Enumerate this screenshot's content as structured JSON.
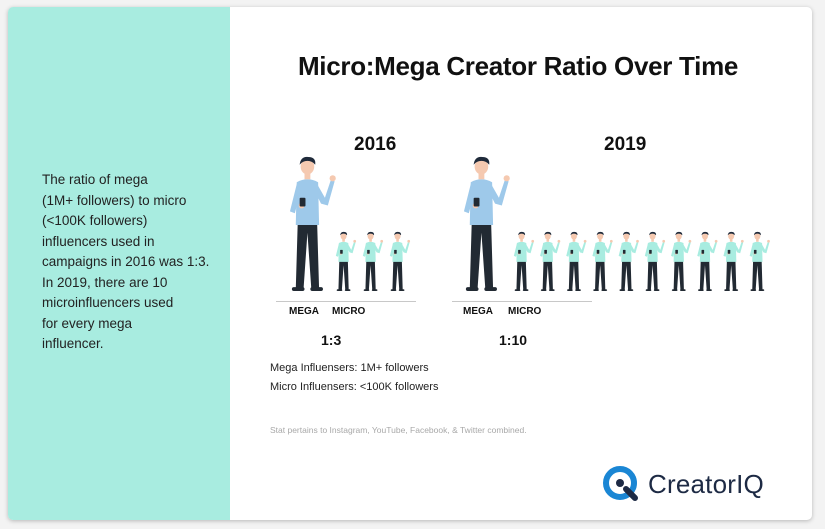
{
  "sidebar": {
    "text": "The ratio of mega\n(1M+ followers) to micro\n(<100K followers)\ninfluencers used in\ncampaigns in 2016 was 1:3.\nIn 2019, there are 10\nmicroinfluencers used\nfor every mega\ninfluencer."
  },
  "chart_data": {
    "type": "pictograph",
    "title": "Micro:Mega Creator Ratio Over Time",
    "categories": [
      "MEGA",
      "MICRO"
    ],
    "panels": [
      {
        "year": "2016",
        "ratio_label": "1:3",
        "mega_count": 1,
        "micro_count": 3
      },
      {
        "year": "2019",
        "ratio_label": "1:10",
        "mega_count": 1,
        "micro_count": 10
      }
    ],
    "colors": {
      "mega_shirt": "#9ec9ea",
      "micro_shirt": "#a8ece0",
      "pants": "#222a33",
      "skin": "#f5c9b0",
      "hair": "#1f2a3a"
    }
  },
  "notes": {
    "mega": "Mega Influensers: 1M+ followers",
    "micro": "Micro Influensers: <100K followers"
  },
  "footnote": "Stat pertains to Instagram, YouTube, Facebook, & Twitter combined.",
  "logo": {
    "text": "CreatorIQ",
    "icon": "creatoriq-logo-icon",
    "color": "#1a86d4"
  }
}
